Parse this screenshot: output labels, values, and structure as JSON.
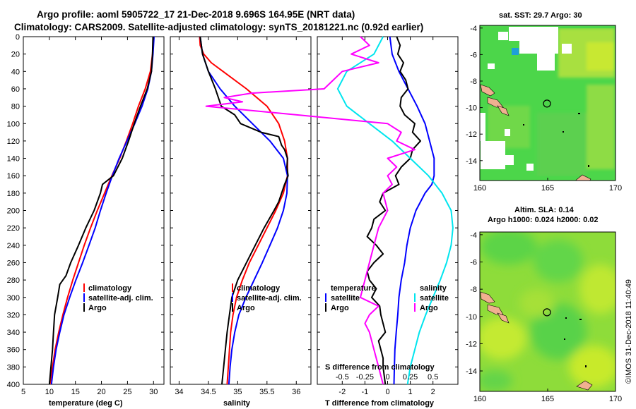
{
  "header": {
    "title_line1": "Argo profile: aoml 5905722_17 21-Dec-2018 9.696S 164.95E (NRT data)",
    "title_line2": "Climatology: CARS2009. Satellite-adjusted climatology: synTS_20181221.nc (0.92d earlier)"
  },
  "colors": {
    "climatology": "#ff0000",
    "satellite": "#0000ff",
    "argo": "#000000",
    "temp_diff_satellite": "#00e5ee",
    "sal_diff_argo": "#ff00ff"
  },
  "chart_data": [
    {
      "type": "line",
      "id": "temperature",
      "xlabel": "temperature (deg C)",
      "ylabel": "depth",
      "xlim": [
        5,
        32
      ],
      "ylim": [
        400,
        0
      ],
      "xticks": [
        "5",
        "10",
        "15",
        "20",
        "25",
        "30"
      ],
      "yticks": [
        "0",
        "20",
        "40",
        "60",
        "80",
        "100",
        "120",
        "140",
        "160",
        "180",
        "200",
        "220",
        "240",
        "260",
        "280",
        "300",
        "320",
        "340",
        "360",
        "380",
        "400"
      ],
      "legend": [
        "climatology",
        "satellite-adj. clim.",
        "Argo"
      ],
      "series": [
        {
          "name": "climatology",
          "depth": [
            0,
            20,
            40,
            60,
            80,
            100,
            120,
            140,
            160,
            180,
            200,
            220,
            240,
            260,
            280,
            300,
            320,
            340,
            360,
            380,
            400
          ],
          "values": [
            30.0,
            29.8,
            29.4,
            28.4,
            27.1,
            26.0,
            24.8,
            23.5,
            22.0,
            20.6,
            19.2,
            17.9,
            16.7,
            15.6,
            14.5,
            13.5,
            12.6,
            11.8,
            11.1,
            10.6,
            10.1
          ]
        },
        {
          "name": "satellite-adj. clim.",
          "depth": [
            0,
            20,
            40,
            60,
            80,
            100,
            120,
            140,
            160,
            180,
            200,
            220,
            240,
            260,
            280,
            300,
            320,
            340,
            360,
            380,
            400
          ],
          "values": [
            30.1,
            29.9,
            29.6,
            28.9,
            27.8,
            26.4,
            24.9,
            23.4,
            22.1,
            20.9,
            19.8,
            18.8,
            17.6,
            16.4,
            15.1,
            13.9,
            12.8,
            12.0,
            11.3,
            10.8,
            10.4
          ]
        },
        {
          "name": "Argo",
          "depth": [
            0,
            20,
            40,
            60,
            80,
            100,
            120,
            140,
            160,
            170,
            180,
            200,
            220,
            240,
            260,
            275,
            285,
            300,
            320,
            340,
            360,
            380,
            400
          ],
          "values": [
            29.9,
            29.8,
            29.6,
            28.8,
            27.5,
            26.3,
            25.2,
            24.0,
            22.3,
            20.2,
            19.8,
            18.6,
            17.0,
            15.6,
            14.1,
            13.2,
            12.0,
            11.6,
            11.0,
            10.8,
            10.6,
            10.3,
            10.0
          ]
        }
      ]
    },
    {
      "type": "line",
      "id": "salinity",
      "xlabel": "salinity",
      "xlim": [
        33.85,
        36.25
      ],
      "ylim": [
        400,
        0
      ],
      "xticks": [
        "34",
        "34.5",
        "35",
        "35.5",
        "36"
      ],
      "legend": [
        "climatology",
        "satellite-adj. clim.",
        "Argo"
      ],
      "series": [
        {
          "name": "climatology",
          "depth": [
            0,
            10,
            20,
            30,
            40,
            60,
            80,
            100,
            120,
            140,
            160,
            180,
            200,
            220,
            240,
            260,
            280,
            300,
            320,
            340,
            360,
            380,
            400
          ],
          "values": [
            34.35,
            34.36,
            34.42,
            34.55,
            34.75,
            35.15,
            35.5,
            35.7,
            35.8,
            35.85,
            35.85,
            35.78,
            35.65,
            35.5,
            35.35,
            35.2,
            35.08,
            34.98,
            34.92,
            34.88,
            34.86,
            34.84,
            34.82
          ]
        },
        {
          "name": "satellite-adj. clim.",
          "depth": [
            0,
            20,
            40,
            60,
            80,
            100,
            120,
            140,
            160,
            180,
            200,
            220,
            240,
            260,
            280,
            300,
            320,
            340,
            360,
            380,
            400
          ],
          "values": [
            34.36,
            34.4,
            34.5,
            34.7,
            34.95,
            35.25,
            35.55,
            35.78,
            35.85,
            35.84,
            35.78,
            35.68,
            35.55,
            35.42,
            35.28,
            35.14,
            35.02,
            34.95,
            34.9,
            34.87,
            34.85
          ]
        },
        {
          "name": "Argo",
          "depth": [
            0,
            20,
            40,
            60,
            80,
            90,
            100,
            110,
            115,
            125,
            130,
            140,
            150,
            160,
            170,
            180,
            190,
            200,
            220,
            240,
            260,
            280,
            300,
            320,
            340,
            360,
            380,
            400
          ],
          "values": [
            34.36,
            34.4,
            34.5,
            34.62,
            34.72,
            34.95,
            35.05,
            35.4,
            35.7,
            35.75,
            35.8,
            35.85,
            35.84,
            35.86,
            35.8,
            35.75,
            35.7,
            35.62,
            35.45,
            35.3,
            35.15,
            35.0,
            34.9,
            34.86,
            34.82,
            34.79,
            34.76,
            34.73
          ]
        }
      ]
    },
    {
      "type": "line",
      "id": "difference",
      "xlabel": "T difference from climatology",
      "xlabel_top": "S difference from climatology",
      "xlim": [
        -3.1,
        3.1
      ],
      "ylim": [
        400,
        0
      ],
      "xticks": [
        "-2",
        "-1",
        "0",
        "1",
        "2"
      ],
      "xticks_top": [
        "-0.5",
        "-0.25",
        "0",
        "0.25",
        "0.5"
      ],
      "legend_left_title": "temperature",
      "legend_right_title": "salinity",
      "legend_left": [
        "satellite",
        "Argo"
      ],
      "legend_right": [
        "satellite",
        "Argo"
      ],
      "series": [
        {
          "name": "temperature satellite",
          "depth": [
            0,
            20,
            40,
            60,
            80,
            100,
            120,
            140,
            160,
            170,
            180,
            200,
            220,
            240,
            260,
            280,
            300,
            320,
            340,
            360,
            380,
            400
          ],
          "values": [
            0.1,
            0.2,
            0.5,
            0.9,
            1.3,
            1.65,
            1.85,
            2.05,
            2.05,
            1.95,
            1.65,
            1.25,
            1.0,
            0.85,
            0.75,
            0.6,
            0.5,
            0.45,
            0.38,
            0.32,
            0.3,
            0.28
          ]
        },
        {
          "name": "temperature Argo",
          "depth": [
            0,
            10,
            20,
            30,
            40,
            50,
            60,
            70,
            80,
            90,
            100,
            110,
            120,
            130,
            140,
            150,
            160,
            170,
            180,
            190,
            200,
            210,
            220,
            230,
            240,
            250,
            260,
            270,
            280,
            290,
            300,
            310,
            320,
            330,
            340,
            350,
            360,
            370,
            380,
            390,
            400
          ],
          "values": [
            0.4,
            0.55,
            0.45,
            0.7,
            0.55,
            0.8,
            0.9,
            0.6,
            0.55,
            0.75,
            1.2,
            1.1,
            1.45,
            1.1,
            1.0,
            0.6,
            0.35,
            0.5,
            -0.2,
            -0.35,
            -0.1,
            -0.6,
            -0.7,
            -0.9,
            -0.5,
            -0.2,
            -0.6,
            -0.9,
            -0.8,
            -0.5,
            -0.7,
            -0.35,
            -0.3,
            -0.2,
            -0.1,
            -0.4,
            -0.3,
            -0.2,
            -0.2,
            -0.15,
            -0.1
          ]
        },
        {
          "name": "salinity satellite",
          "depth": [
            0,
            20,
            40,
            60,
            80,
            100,
            120,
            140,
            160,
            180,
            200,
            220,
            240,
            260,
            280,
            300,
            320,
            340,
            360,
            380,
            400
          ],
          "values": [
            -0.05,
            -0.15,
            -0.45,
            -0.55,
            -0.45,
            -0.2,
            0.05,
            0.25,
            0.45,
            0.6,
            0.7,
            0.72,
            0.7,
            0.65,
            0.58,
            0.5,
            0.42,
            0.35,
            0.3,
            0.25,
            0.22
          ]
        },
        {
          "name": "salinity Argo",
          "depth": [
            0,
            10,
            20,
            30,
            40,
            50,
            60,
            65,
            70,
            75,
            80,
            90,
            100,
            110,
            120,
            130,
            140,
            150,
            160,
            170,
            180,
            200,
            220,
            240,
            260,
            280,
            300,
            310,
            320,
            330,
            340,
            360,
            380,
            400
          ],
          "values": [
            -0.3,
            -0.2,
            -0.4,
            -0.1,
            -0.5,
            -0.6,
            -0.7,
            -1.5,
            -1.8,
            -1.6,
            -2.0,
            -1.0,
            0.0,
            0.15,
            0.1,
            0.3,
            0.0,
            0.1,
            0.0,
            0.05,
            -0.05,
            0.0,
            -0.1,
            -0.15,
            -0.2,
            -0.25,
            -0.3,
            -0.1,
            -0.2,
            -0.25,
            -0.2,
            -0.15,
            -0.1,
            -0.05
          ]
        }
      ]
    },
    {
      "type": "heatmap",
      "id": "sst_map",
      "title": "sat. SST: 29.7 Argo: 30",
      "xlim": [
        160,
        170
      ],
      "ylim": [
        -15.5,
        -3.8
      ],
      "xticks": [
        "160",
        "165",
        "170"
      ],
      "yticks": [
        "-4",
        "-6",
        "-8",
        "-10",
        "-12",
        "-14"
      ],
      "marker": {
        "lon": 164.95,
        "lat": -9.696
      }
    },
    {
      "type": "heatmap",
      "id": "sla_map",
      "title": "Altim. SLA: 0.14",
      "subtitle": "Argo h1000: 0.024 h2000: 0.02",
      "xlim": [
        160,
        170
      ],
      "ylim": [
        -15.5,
        -3.8
      ],
      "xticks": [
        "160",
        "165",
        "170"
      ],
      "yticks": [
        "-4",
        "-6",
        "-8",
        "-10",
        "-12",
        "-14"
      ],
      "marker": {
        "lon": 164.95,
        "lat": -9.696
      }
    }
  ],
  "footer": {
    "stamp": "©IMOS 31-Dec-2018 11:40:49"
  }
}
